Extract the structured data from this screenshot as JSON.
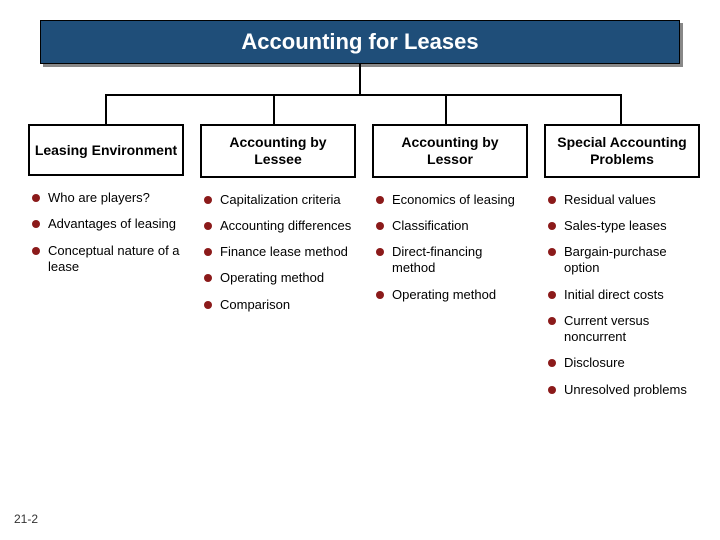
{
  "title": "Accounting for Leases",
  "page_num": "21-2",
  "columns": [
    {
      "header": "Leasing Environment",
      "items": [
        "Who are players?",
        "Advantages of leasing",
        "Conceptual nature of a lease"
      ]
    },
    {
      "header": "Accounting by Lessee",
      "items": [
        "Capitalization criteria",
        "Accounting differences",
        "Finance lease method",
        "Operating method",
        "Comparison"
      ]
    },
    {
      "header": "Accounting by Lessor",
      "items": [
        "Economics of leasing",
        "Classification",
        "Direct-financing method",
        "Operating method"
      ]
    },
    {
      "header": "Special Accounting Problems",
      "items": [
        "Residual values",
        "Sales-type leases",
        "Bargain-purchase option",
        "Initial direct costs",
        "Current versus noncurrent",
        "Disclosure",
        "Unresolved problems"
      ]
    }
  ],
  "style": {
    "title_bg": "#1f4e79",
    "title_color": "#ffffff",
    "title_fontsize": 22,
    "header_border": "#000000",
    "header_fontsize": 14,
    "item_fontsize": 13,
    "bullet_color": "#8b1a1a",
    "connector_color": "#000000",
    "background": "#ffffff"
  }
}
